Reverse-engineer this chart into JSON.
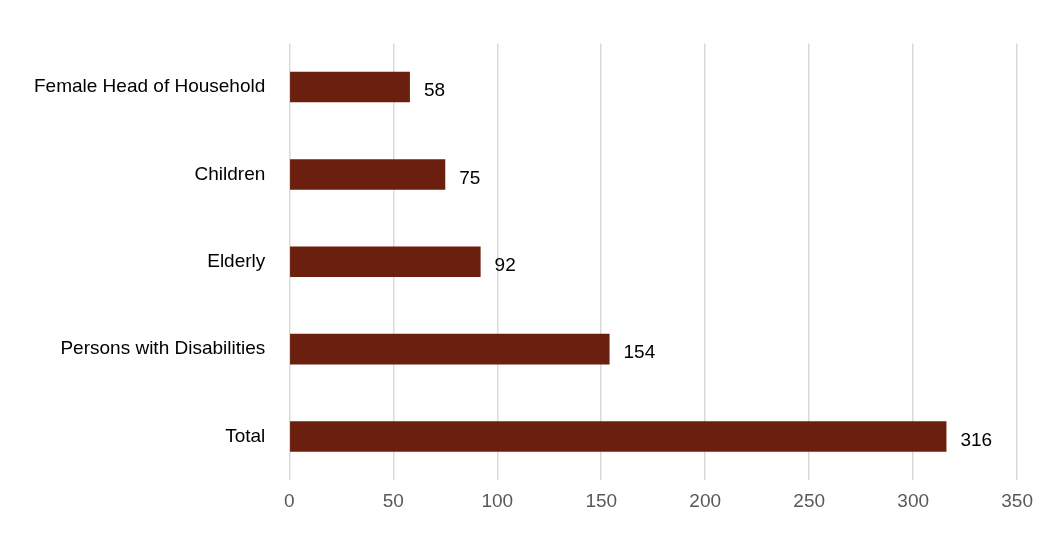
{
  "chart_data": {
    "type": "bar",
    "orientation": "horizontal",
    "categories": [
      "Female Head of Household",
      "Children",
      "Elderly",
      "Persons with Disabilities",
      "Total"
    ],
    "values": [
      58,
      75,
      92,
      154,
      316
    ],
    "color": "#6b1f0e",
    "xlim": [
      0,
      350
    ],
    "xticks": [
      0,
      50,
      100,
      150,
      200,
      250,
      300,
      350
    ],
    "grid": "x",
    "data_labels": true,
    "legend": false
  }
}
